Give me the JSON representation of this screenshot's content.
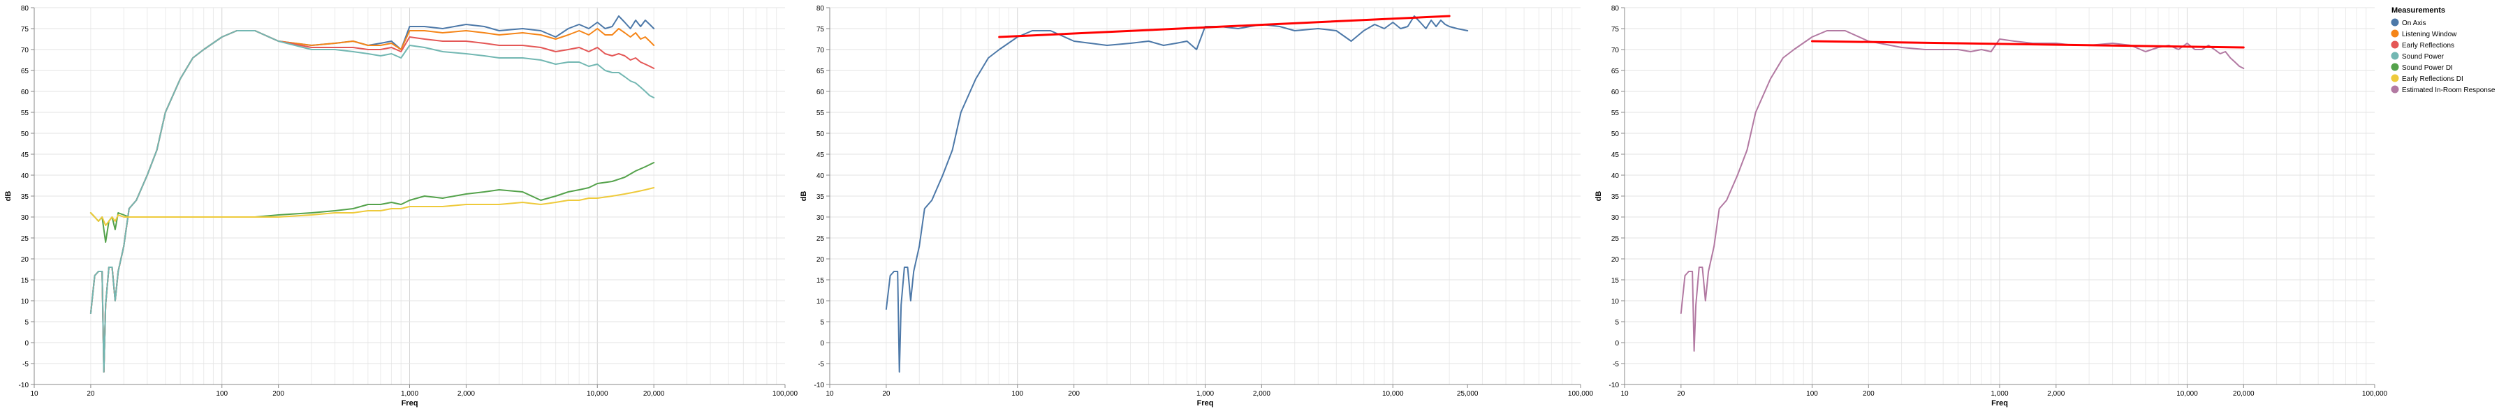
{
  "chart_data": [
    {
      "type": "line",
      "x_scale": "log",
      "xlabel": "Freq",
      "ylabel": "dB",
      "xlim": [
        10,
        100000
      ],
      "ylim": [
        -10,
        80
      ],
      "x_ticks": [
        {
          "v": 10,
          "label": "10"
        },
        {
          "v": 20,
          "label": "20"
        },
        {
          "v": 100,
          "label": "100"
        },
        {
          "v": 200,
          "label": "200"
        },
        {
          "v": 1000,
          "label": "1,000"
        },
        {
          "v": 2000,
          "label": "2,000"
        },
        {
          "v": 10000,
          "label": "10,000"
        },
        {
          "v": 20000,
          "label": "20,000"
        },
        {
          "v": 100000,
          "label": "100,000"
        }
      ],
      "y_ticks": [
        -10,
        -5,
        0,
        5,
        10,
        15,
        20,
        25,
        30,
        35,
        40,
        45,
        50,
        55,
        60,
        65,
        70,
        75,
        80
      ],
      "grid": true,
      "series": [
        {
          "name": "On Axis",
          "color": "#4c78a8",
          "x": [
            20,
            21,
            22,
            23,
            23.5,
            24,
            25,
            26,
            27,
            28,
            30,
            32,
            35,
            40,
            45,
            50,
            60,
            70,
            80,
            100,
            120,
            150,
            200,
            300,
            400,
            500,
            600,
            700,
            800,
            900,
            1000,
            1200,
            1500,
            2000,
            2500,
            3000,
            4000,
            5000,
            6000,
            7000,
            8000,
            9000,
            10000,
            11000,
            12000,
            13000,
            14000,
            15000,
            16000,
            17000,
            18000,
            19000,
            20000
          ],
          "y": [
            7,
            16,
            17,
            17,
            -7,
            9,
            18,
            18,
            10,
            17,
            23,
            32,
            34,
            40,
            46,
            55,
            63,
            68,
            70,
            73,
            74.5,
            74.5,
            72,
            71,
            71.5,
            72,
            71,
            71.5,
            72,
            70,
            75.5,
            75.5,
            75,
            76,
            75.5,
            74.5,
            75,
            74.5,
            73,
            75,
            76,
            75,
            76.5,
            75,
            75.5,
            78,
            76.5,
            75,
            77,
            75.5,
            77,
            76,
            75
          ]
        },
        {
          "name": "Listening Window",
          "color": "#f58518",
          "x": [
            20,
            21,
            22,
            23,
            23.5,
            24,
            25,
            26,
            27,
            28,
            30,
            32,
            35,
            40,
            45,
            50,
            60,
            70,
            80,
            100,
            120,
            150,
            200,
            300,
            400,
            500,
            600,
            700,
            800,
            900,
            1000,
            1200,
            1500,
            2000,
            2500,
            3000,
            4000,
            5000,
            6000,
            7000,
            8000,
            9000,
            10000,
            11000,
            12000,
            13000,
            14000,
            15000,
            16000,
            17000,
            18000,
            19000,
            20000
          ],
          "y": [
            7,
            16,
            17,
            17,
            -7,
            9,
            18,
            18,
            10,
            17,
            23,
            32,
            34,
            40,
            46,
            55,
            63,
            68,
            70,
            73,
            74.5,
            74.5,
            72,
            71,
            71.5,
            72,
            71,
            71,
            71.5,
            70,
            74.5,
            74.5,
            74,
            74.5,
            74,
            73.5,
            74,
            73.5,
            72.5,
            73.5,
            74.5,
            73.5,
            75,
            73.5,
            73.5,
            75,
            74,
            73,
            74,
            72.5,
            73,
            72,
            71
          ]
        },
        {
          "name": "Early Reflections",
          "color": "#e45756",
          "x": [
            20,
            21,
            22,
            23,
            23.5,
            24,
            25,
            26,
            27,
            28,
            30,
            32,
            35,
            40,
            45,
            50,
            60,
            70,
            80,
            100,
            120,
            150,
            200,
            300,
            400,
            500,
            600,
            700,
            800,
            900,
            1000,
            1200,
            1500,
            2000,
            2500,
            3000,
            4000,
            5000,
            6000,
            7000,
            8000,
            9000,
            10000,
            11000,
            12000,
            13000,
            14000,
            15000,
            16000,
            17000,
            18000,
            19000,
            20000
          ],
          "y": [
            7,
            16,
            17,
            17,
            -7,
            9,
            18,
            18,
            10,
            17,
            23,
            32,
            34,
            40,
            46,
            55,
            63,
            68,
            70,
            73,
            74.5,
            74.5,
            72,
            70.5,
            70.5,
            70.5,
            70,
            70,
            70.5,
            69.5,
            73,
            72.5,
            72,
            72,
            71.5,
            71,
            71,
            70.5,
            69.5,
            70,
            70.5,
            69.5,
            70.5,
            69,
            68.5,
            69,
            68.5,
            67.5,
            68,
            67,
            66.5,
            66,
            65.5
          ]
        },
        {
          "name": "Sound Power",
          "color": "#72b7b2",
          "x": [
            20,
            21,
            22,
            23,
            23.5,
            24,
            25,
            26,
            27,
            28,
            30,
            32,
            35,
            40,
            45,
            50,
            60,
            70,
            80,
            100,
            120,
            150,
            200,
            300,
            400,
            500,
            600,
            700,
            800,
            900,
            1000,
            1200,
            1500,
            2000,
            2500,
            3000,
            4000,
            5000,
            6000,
            7000,
            8000,
            9000,
            10000,
            11000,
            12000,
            13000,
            14000,
            15000,
            16000,
            17000,
            18000,
            19000,
            20000
          ],
          "y": [
            7,
            16,
            17,
            17,
            -7,
            9,
            18,
            18,
            10,
            17,
            23,
            32,
            34,
            40,
            46,
            55,
            63,
            68,
            70,
            73,
            74.5,
            74.5,
            72,
            70,
            70,
            69.5,
            69,
            68.5,
            69,
            68,
            71,
            70.5,
            69.5,
            69,
            68.5,
            68,
            68,
            67.5,
            66.5,
            67,
            67,
            66,
            66.5,
            65,
            64.5,
            64.5,
            63.5,
            62.5,
            62,
            61,
            60,
            59,
            58.5
          ]
        },
        {
          "name": "Sound Power DI",
          "color": "#54a24b",
          "x": [
            20,
            21,
            22,
            23,
            24,
            25,
            26,
            27,
            28,
            30,
            32,
            35,
            40,
            50,
            70,
            100,
            150,
            200,
            300,
            400,
            500,
            600,
            700,
            800,
            900,
            1000,
            1200,
            1500,
            2000,
            2500,
            3000,
            4000,
            5000,
            6000,
            7000,
            8000,
            9000,
            10000,
            12000,
            14000,
            16000,
            18000,
            20000
          ],
          "y": [
            31,
            30,
            29,
            30,
            24,
            29,
            30,
            27,
            31,
            30.5,
            30,
            30,
            30,
            30,
            30,
            30,
            30,
            30.5,
            31,
            31.5,
            32,
            33,
            33,
            33.5,
            33,
            34,
            35,
            34.5,
            35.5,
            36,
            36.5,
            36,
            34,
            35,
            36,
            36.5,
            37,
            38,
            38.5,
            39.5,
            41,
            42,
            43
          ]
        },
        {
          "name": "Early Reflections DI",
          "color": "#eeca3b",
          "x": [
            20,
            21,
            22,
            23,
            24,
            25,
            26,
            27,
            28,
            30,
            32,
            35,
            40,
            50,
            70,
            100,
            150,
            200,
            300,
            400,
            500,
            600,
            700,
            800,
            900,
            1000,
            1200,
            1500,
            2000,
            2500,
            3000,
            4000,
            5000,
            6000,
            7000,
            8000,
            9000,
            10000,
            12000,
            14000,
            16000,
            18000,
            20000
          ],
          "y": [
            31,
            30,
            29,
            30,
            28,
            29,
            30,
            29,
            30.5,
            30,
            30,
            30,
            30,
            30,
            30,
            30,
            30,
            30,
            30.5,
            31,
            31,
            31.5,
            31.5,
            32,
            32,
            32.5,
            32.5,
            32.5,
            33,
            33,
            33,
            33.5,
            33,
            33.5,
            34,
            34,
            34.5,
            34.5,
            35,
            35.5,
            36,
            36.5,
            37
          ]
        }
      ]
    },
    {
      "type": "line",
      "x_scale": "log",
      "xlabel": "Freq",
      "ylabel": "dB",
      "xlim": [
        10,
        100000
      ],
      "ylim": [
        -10,
        80
      ],
      "x_ticks": [
        {
          "v": 10,
          "label": "10"
        },
        {
          "v": 20,
          "label": "20"
        },
        {
          "v": 100,
          "label": "100"
        },
        {
          "v": 200,
          "label": "200"
        },
        {
          "v": 1000,
          "label": "1,000"
        },
        {
          "v": 2000,
          "label": "2,000"
        },
        {
          "v": 10000,
          "label": "10,000"
        },
        {
          "v": 25000,
          "label": "25,000"
        },
        {
          "v": 100000,
          "label": "100,000"
        }
      ],
      "y_ticks": [
        -10,
        -5,
        0,
        5,
        10,
        15,
        20,
        25,
        30,
        35,
        40,
        45,
        50,
        55,
        60,
        65,
        70,
        75,
        80
      ],
      "grid": true,
      "series": [
        {
          "name": "On Axis",
          "color": "#4c78a8",
          "x": [
            20,
            21,
            22,
            23,
            23.5,
            24,
            25,
            26,
            27,
            28,
            30,
            32,
            35,
            40,
            45,
            50,
            60,
            70,
            80,
            100,
            120,
            150,
            200,
            300,
            400,
            500,
            600,
            700,
            800,
            900,
            1000,
            1200,
            1500,
            2000,
            2500,
            3000,
            4000,
            5000,
            6000,
            7000,
            8000,
            9000,
            10000,
            11000,
            12000,
            13000,
            14000,
            15000,
            16000,
            17000,
            18000,
            19000,
            20000,
            22000,
            25000
          ],
          "y": [
            8,
            16,
            17,
            17,
            -7,
            9,
            18,
            18,
            10,
            17,
            23,
            32,
            34,
            40,
            46,
            55,
            63,
            68,
            70,
            73,
            74.5,
            74.5,
            72,
            71,
            71.5,
            72,
            71,
            71.5,
            72,
            70,
            75.5,
            75.5,
            75,
            76,
            75.5,
            74.5,
            75,
            74.5,
            72,
            74.5,
            76,
            75,
            76.5,
            75,
            75.5,
            78,
            76.5,
            75,
            77,
            75.5,
            77,
            76,
            75.5,
            75,
            74.5
          ]
        },
        {
          "name": "",
          "color": "#ff0000",
          "x": [
            80,
            20000
          ],
          "y": [
            73,
            78
          ]
        }
      ]
    },
    {
      "type": "line",
      "x_scale": "log",
      "xlabel": "Freq",
      "ylabel": "dB",
      "xlim": [
        10,
        100000
      ],
      "ylim": [
        -10,
        80
      ],
      "x_ticks": [
        {
          "v": 10,
          "label": "10"
        },
        {
          "v": 20,
          "label": "20"
        },
        {
          "v": 100,
          "label": "100"
        },
        {
          "v": 200,
          "label": "200"
        },
        {
          "v": 1000,
          "label": "1,000"
        },
        {
          "v": 2000,
          "label": "2,000"
        },
        {
          "v": 10000,
          "label": "10,000"
        },
        {
          "v": 20000,
          "label": "20,000"
        },
        {
          "v": 100000,
          "label": "100,000"
        }
      ],
      "y_ticks": [
        -10,
        -5,
        0,
        5,
        10,
        15,
        20,
        25,
        30,
        35,
        40,
        45,
        50,
        55,
        60,
        65,
        70,
        75,
        80
      ],
      "grid": true,
      "legend": {
        "title": "Measurements",
        "placement": "right",
        "items": [
          {
            "label": "On Axis",
            "color": "#4c78a8"
          },
          {
            "label": "Listening Window",
            "color": "#f58518"
          },
          {
            "label": "Early Reflections",
            "color": "#e45756"
          },
          {
            "label": "Sound Power",
            "color": "#72b7b2"
          },
          {
            "label": "Sound Power DI",
            "color": "#54a24b"
          },
          {
            "label": "Early Reflections DI",
            "color": "#eeca3b"
          },
          {
            "label": "Estimated In-Room Response",
            "color": "#b279a2"
          }
        ]
      },
      "series": [
        {
          "name": "Estimated In-Room Response",
          "color": "#b279a2",
          "x": [
            20,
            21,
            22,
            23,
            23.5,
            24,
            25,
            26,
            27,
            28,
            30,
            32,
            35,
            40,
            45,
            50,
            60,
            70,
            80,
            100,
            120,
            150,
            200,
            300,
            400,
            500,
            600,
            700,
            800,
            900,
            1000,
            1200,
            1500,
            2000,
            2500,
            3000,
            4000,
            5000,
            6000,
            7000,
            8000,
            9000,
            10000,
            11000,
            12000,
            13000,
            14000,
            15000,
            16000,
            17000,
            18000,
            19000,
            20000
          ],
          "y": [
            7,
            16,
            17,
            17,
            -2,
            9,
            18,
            18,
            10,
            17,
            23,
            32,
            34,
            40,
            46,
            55,
            63,
            68,
            70,
            73,
            74.5,
            74.5,
            72,
            70.5,
            70,
            70,
            70,
            69.5,
            70,
            69.5,
            72.5,
            72,
            71.5,
            71.5,
            71,
            71,
            71.5,
            71,
            69.5,
            70.5,
            71,
            70,
            71.5,
            70,
            70,
            71,
            70,
            69,
            69.5,
            68,
            67,
            66,
            65.5
          ]
        },
        {
          "name": "",
          "color": "#ff0000",
          "x": [
            100,
            20000
          ],
          "y": [
            72,
            70.5
          ]
        }
      ]
    }
  ]
}
